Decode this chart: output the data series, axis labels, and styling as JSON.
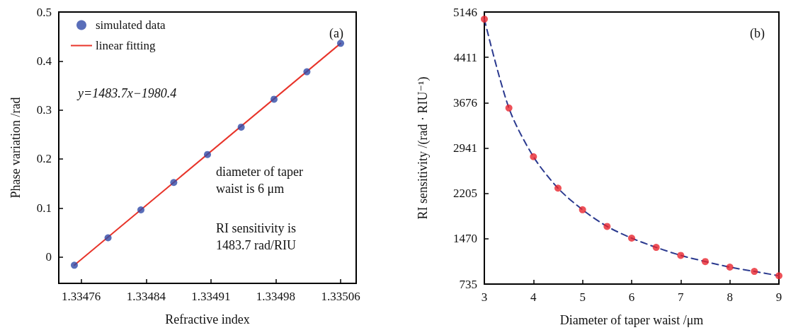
{
  "chart_data": [
    {
      "type": "scatter",
      "xlabel": "Refractive index",
      "ylabel": "Phase variation /rad",
      "xlim": [
        1.334734,
        1.335078
      ],
      "ylim": [
        -0.054,
        0.5
      ],
      "xticks": [
        {
          "value": 1.33476,
          "label": "1.33476"
        },
        {
          "value": 1.334835,
          "label": "1.33484"
        },
        {
          "value": 1.33491,
          "label": "1.33491"
        },
        {
          "value": 1.334985,
          "label": "1.33498"
        },
        {
          "value": 1.33506,
          "label": "1.33506"
        }
      ],
      "yticks": [
        0,
        0.1,
        0.2,
        0.3,
        0.4,
        0.5
      ],
      "grid": false,
      "legend": "top left",
      "annotations": [
        "(a)",
        "y=1483.7x−1980.4",
        "diameter of taper waist is 6 μm",
        "RI sensitivity is 1483.7 rad/RIU"
      ],
      "series": [
        {
          "name": "simulated data",
          "marker": "circle",
          "color": "#2f4aa8",
          "x": [
            1.334752,
            1.334791,
            1.334829,
            1.334867,
            1.334906,
            1.334945,
            1.334983,
            1.335021,
            1.33506
          ],
          "values": [
            -0.017,
            0.039,
            0.096,
            0.152,
            0.209,
            0.265,
            0.322,
            0.378,
            0.436
          ]
        },
        {
          "name": "linear fitting",
          "type": "line",
          "marker": "none",
          "line_style": "solid",
          "color": "#e8352b",
          "x": [
            1.334752,
            1.33506
          ],
          "values": [
            -0.017,
            0.436
          ]
        }
      ]
    },
    {
      "type": "scatter",
      "xlabel": "Diameter of taper waist /μm",
      "ylabel": "RI sensitivity /(rad · RIU⁻¹)",
      "xlim": [
        3,
        9
      ],
      "ylim": [
        735,
        5146
      ],
      "xticks": [
        3,
        4,
        5,
        6,
        7,
        8,
        9
      ],
      "yticks": [
        735,
        1470,
        2205,
        2941,
        3676,
        4411,
        5146
      ],
      "grid": false,
      "annotations": [
        "(b)"
      ],
      "series": [
        {
          "type": "line",
          "marker": "none",
          "line_style": "dashed",
          "color": "#2b3a8f",
          "x": [
            3,
            3.5,
            4,
            4.5,
            5,
            5.5,
            6,
            6.5,
            7,
            7.5,
            8,
            8.5,
            9
          ],
          "values": [
            5030,
            3590,
            2800,
            2290,
            1940,
            1670,
            1480,
            1330,
            1200,
            1100,
            1010,
            940,
            870
          ]
        },
        {
          "marker": "circle",
          "color": "#e8252e",
          "x": [
            3,
            3.5,
            4,
            4.5,
            5,
            5.5,
            6,
            6.5,
            7,
            7.5,
            8,
            8.5,
            9
          ],
          "values": [
            5030,
            3590,
            2800,
            2290,
            1940,
            1670,
            1480,
            1330,
            1200,
            1100,
            1010,
            940,
            870
          ]
        }
      ]
    }
  ]
}
